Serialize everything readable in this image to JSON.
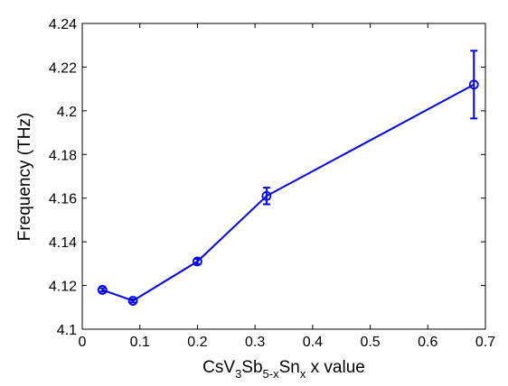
{
  "chart_data": {
    "type": "line",
    "xlabel": {
      "base1": "CsV",
      "sub1": "3",
      "base2": "Sb",
      "sub2": "5-x",
      "base3": "Sn",
      "sub3": "x",
      "suffix": " x value"
    },
    "ylabel": "Frequency (THz)",
    "xlim": [
      0,
      0.7
    ],
    "ylim": [
      4.1,
      4.24
    ],
    "xticks": [
      0,
      0.1,
      0.2,
      0.3,
      0.4,
      0.5,
      0.6,
      0.7
    ],
    "xtick_labels": [
      "0",
      "0.1",
      "0.2",
      "0.3",
      "0.4",
      "0.5",
      "0.6",
      "0.7"
    ],
    "yticks": [
      4.1,
      4.12,
      4.14,
      4.16,
      4.18,
      4.2,
      4.22,
      4.24
    ],
    "ytick_labels": [
      "4.1",
      "4.12",
      "4.14",
      "4.16",
      "4.18",
      "4.2",
      "4.22",
      "4.24"
    ],
    "grid": false,
    "color": "#0000ff",
    "series": [
      {
        "marker": "circle",
        "x": [
          0.035,
          0.088,
          0.2,
          0.32,
          0.68
        ],
        "y": [
          4.118,
          4.113,
          4.131,
          4.161,
          4.212
        ],
        "yerr": [
          0.0008,
          0.0008,
          0.0012,
          0.0038,
          0.0155
        ]
      }
    ]
  }
}
